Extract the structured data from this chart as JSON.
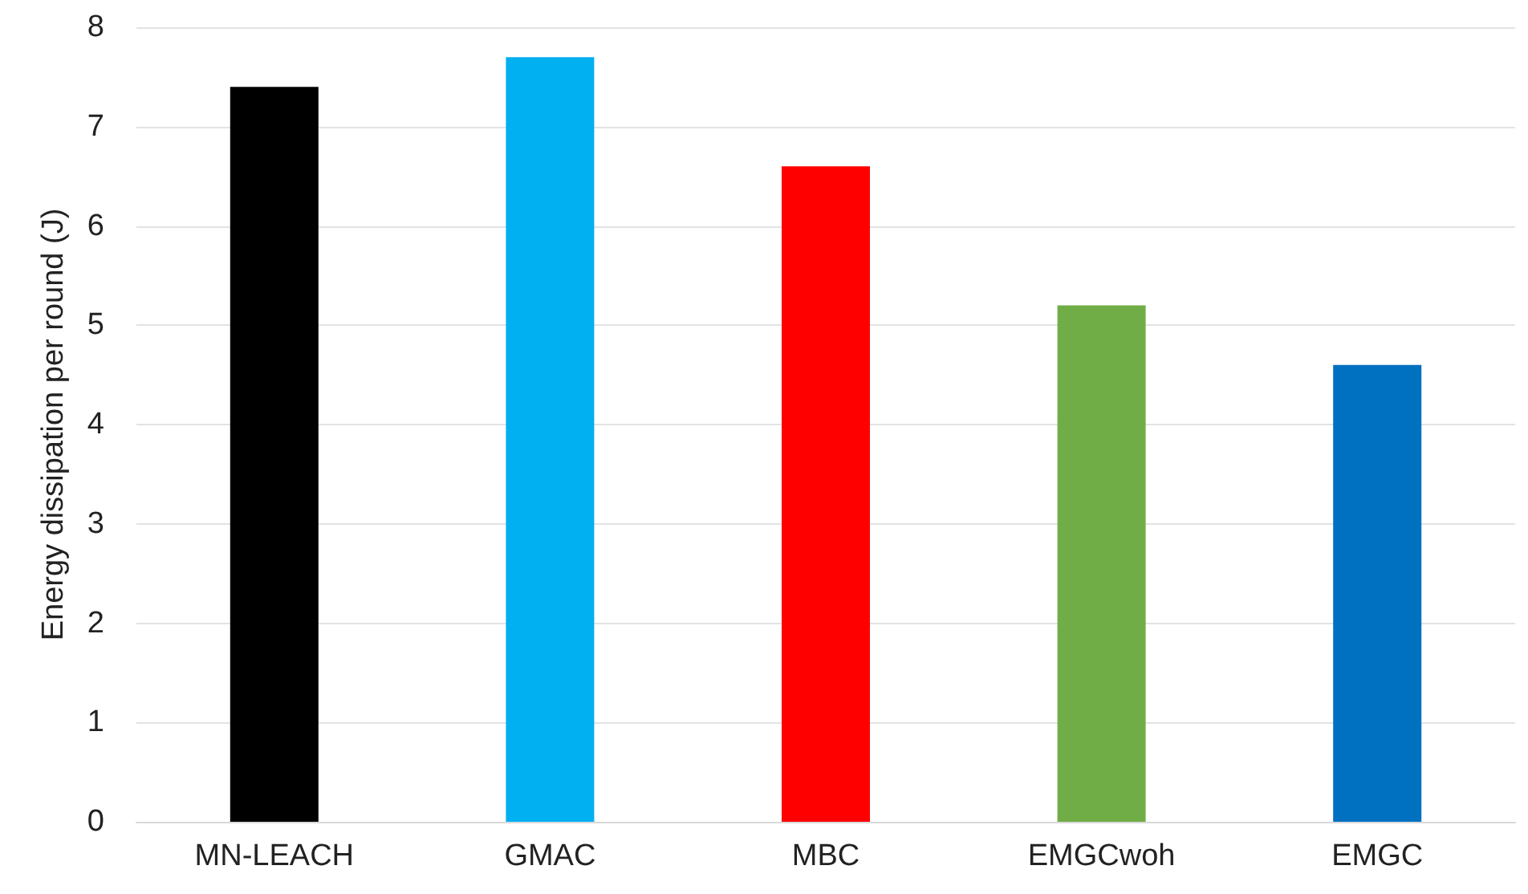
{
  "chart_data": {
    "type": "bar",
    "ylabel": "Energy dissipation per round (J)",
    "categories": [
      "MN-LEACH",
      "GMAC",
      "MBC",
      "EMGCwoh",
      "EMGC"
    ],
    "values": [
      7.4,
      7.7,
      6.6,
      5.2,
      4.6
    ],
    "colors": [
      "#000000",
      "#00b0f0",
      "#ff0000",
      "#70ad47",
      "#0070c0"
    ],
    "ylim": [
      0,
      8
    ],
    "yticks": [
      0,
      1,
      2,
      3,
      4,
      5,
      6,
      7,
      8
    ],
    "grid": "y"
  }
}
